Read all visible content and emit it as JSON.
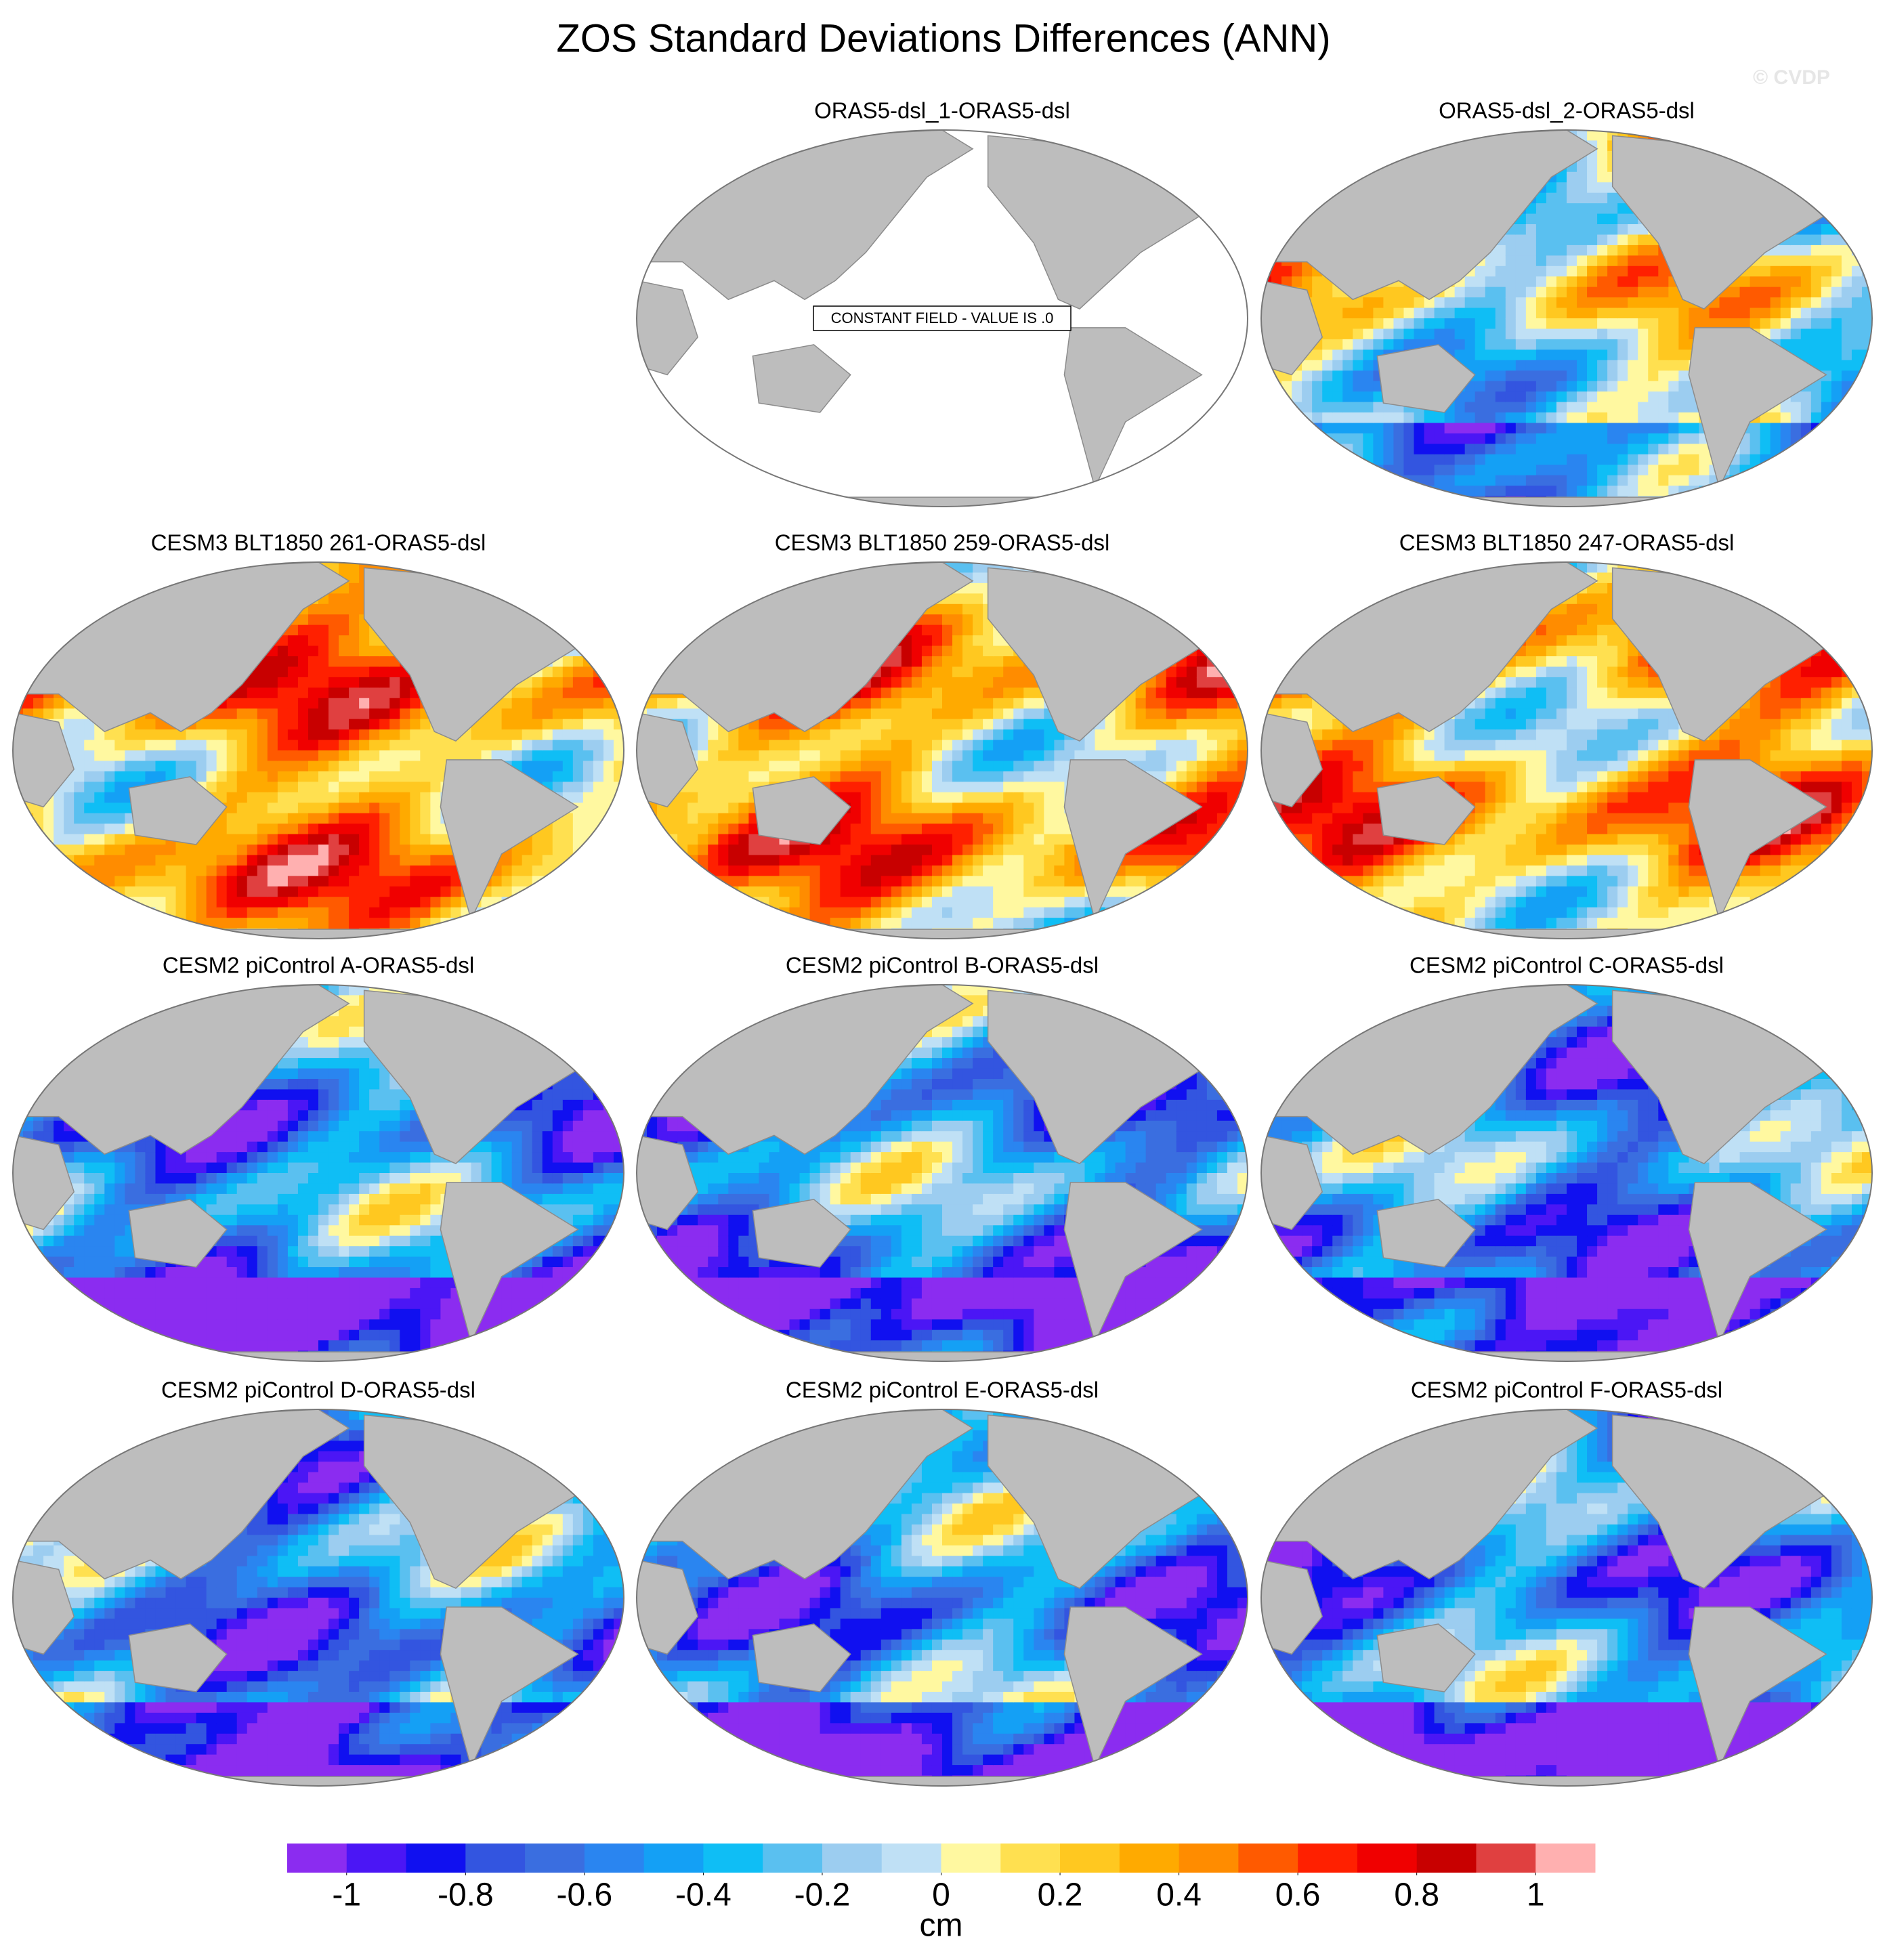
{
  "title": "ZOS Standard Deviations Differences (ANN)",
  "watermark": "© CVDP",
  "panels": [
    {
      "title": "ORAS5-dsl_1-ORAS5-dsl",
      "annotation": "CONSTANT FIELD - VALUE IS .0"
    },
    {
      "title": "ORAS5-dsl_2-ORAS5-dsl"
    },
    {
      "title": "CESM3 BLT1850 261-ORAS5-dsl"
    },
    {
      "title": "CESM3 BLT1850 259-ORAS5-dsl"
    },
    {
      "title": "CESM3 BLT1850 247-ORAS5-dsl"
    },
    {
      "title": "CESM2 piControl A-ORAS5-dsl"
    },
    {
      "title": "CESM2 piControl B-ORAS5-dsl"
    },
    {
      "title": "CESM2 piControl C-ORAS5-dsl"
    },
    {
      "title": "CESM2 piControl D-ORAS5-dsl"
    },
    {
      "title": "CESM2 piControl E-ORAS5-dsl"
    },
    {
      "title": "CESM2 piControl F-ORAS5-dsl"
    }
  ],
  "colorbar": {
    "label": "cm",
    "levels": [
      -1,
      -0.9,
      -0.8,
      -0.7,
      -0.6,
      -0.5,
      -0.4,
      -0.3,
      -0.2,
      -0.1,
      0,
      0.1,
      0.2,
      0.3,
      0.4,
      0.5,
      0.6,
      0.7,
      0.8,
      0.9,
      1
    ],
    "colors": [
      "#8b2cf0",
      "#4b16f5",
      "#1010f0",
      "#3355e0",
      "#3a6ee0",
      "#2a85f0",
      "#14a0f5",
      "#0fbef5",
      "#5ac0f0",
      "#9ccdf0",
      "#bfe0f5",
      "#fff8a0",
      "#ffe050",
      "#ffc820",
      "#ffaa00",
      "#ff8c00",
      "#ff5a00",
      "#ff2000",
      "#f00000",
      "#c80000",
      "#e04040",
      "#ffb0b0"
    ],
    "ticks": [
      -1,
      -0.8,
      -0.6,
      -0.4,
      -0.2,
      0,
      0.2,
      0.4,
      0.6,
      0.8,
      1
    ]
  }
}
